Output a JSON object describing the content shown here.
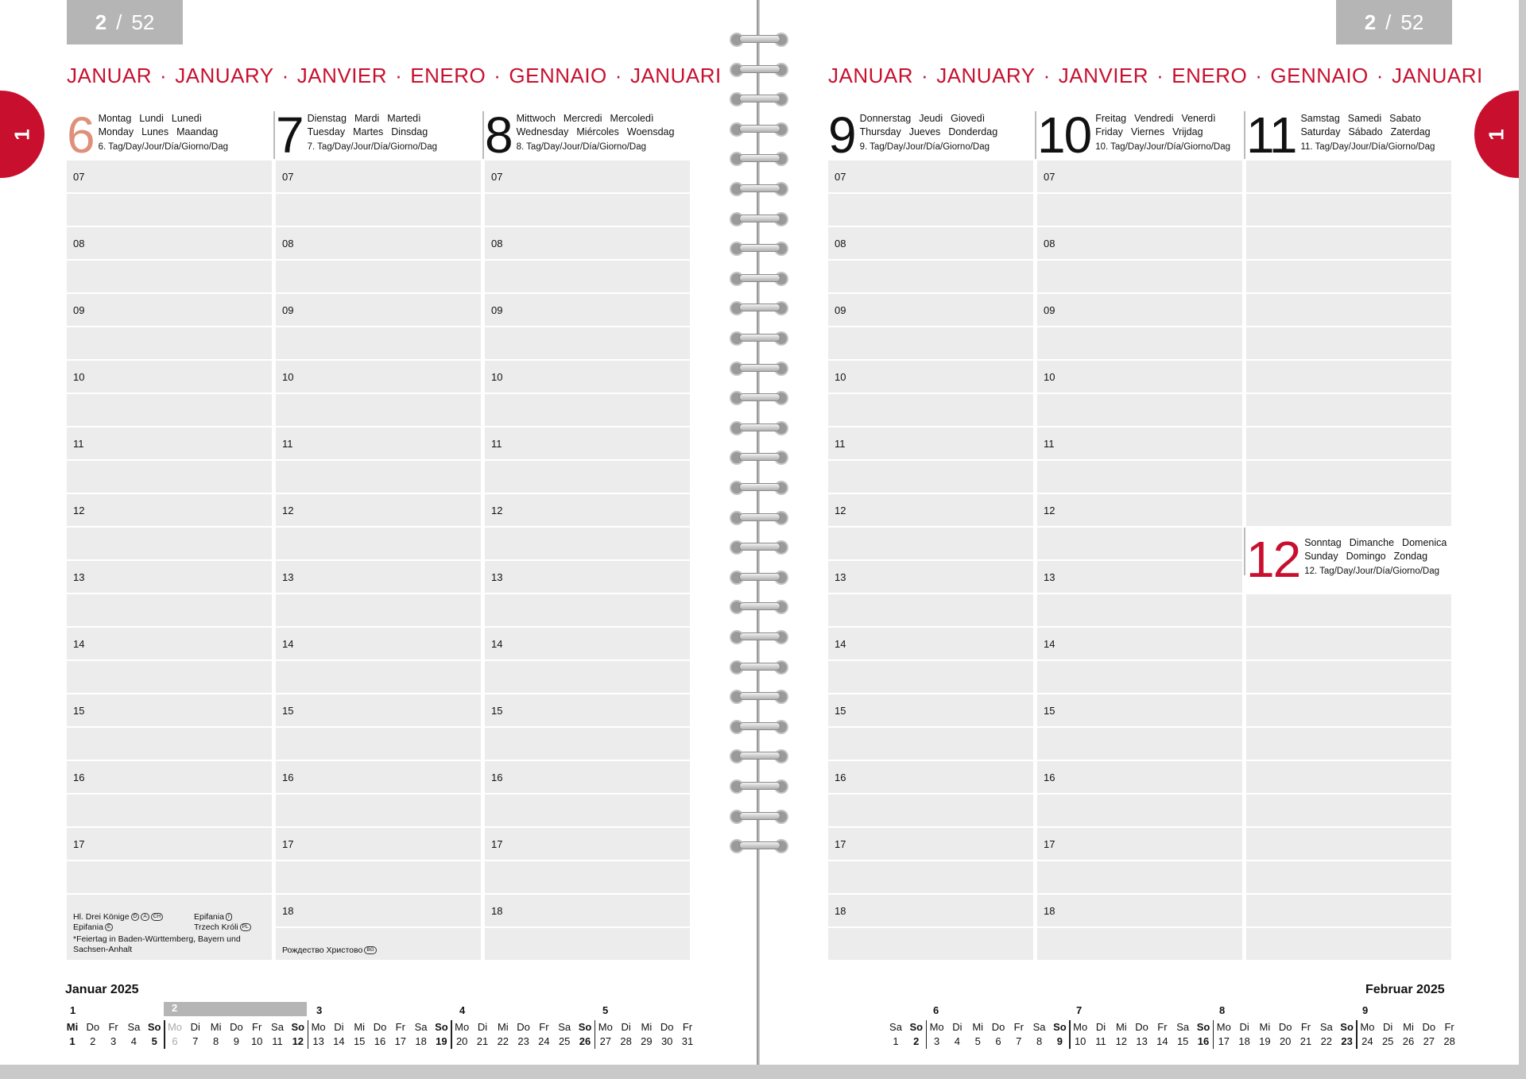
{
  "week": {
    "current": "2",
    "total": "52"
  },
  "months": [
    "JANUAR",
    "JANUARY",
    "JANVIER",
    "ENERO",
    "GENNAIO",
    "JANUARI"
  ],
  "tab_label": "1",
  "hours": [
    "07",
    "08",
    "09",
    "10",
    "11",
    "12",
    "13",
    "14",
    "15",
    "16",
    "17",
    "18"
  ],
  "days": [
    {
      "num": "6",
      "n1": [
        "Montag",
        "Lundi",
        "Lunedì"
      ],
      "n2": [
        "Monday",
        "Lunes",
        "Maandag"
      ],
      "n3": "6. Tag/Day/Jour/Día/Giorno/Dag",
      "color": "#e0907a"
    },
    {
      "num": "7",
      "n1": [
        "Dienstag",
        "Mardi",
        "Martedì"
      ],
      "n2": [
        "Tuesday",
        "Martes",
        "Dinsdag"
      ],
      "n3": "7. Tag/Day/Jour/Día/Giorno/Dag"
    },
    {
      "num": "8",
      "n1": [
        "Mittwoch",
        "Mercredi",
        "Mercoledì"
      ],
      "n2": [
        "Wednesday",
        "Miércoles",
        "Woensdag"
      ],
      "n3": "8. Tag/Day/Jour/Día/Giorno/Dag"
    },
    {
      "num": "9",
      "n1": [
        "Donnerstag",
        "Jeudi",
        "Giovedì"
      ],
      "n2": [
        "Thursday",
        "Jueves",
        "Donderdag"
      ],
      "n3": "9. Tag/Day/Jour/Día/Giorno/Dag"
    },
    {
      "num": "10",
      "n1": [
        "Freitag",
        "Vendredi",
        "Venerdì"
      ],
      "n2": [
        "Friday",
        "Viernes",
        "Vrijdag"
      ],
      "n3": "10. Tag/Day/Jour/Día/Giorno/Dag"
    },
    {
      "num": "11",
      "n1": [
        "Samstag",
        "Samedi",
        "Sabato"
      ],
      "n2": [
        "Saturday",
        "Sábado",
        "Zaterdag"
      ],
      "n3": "11. Tag/Day/Jour/Día/Giorno/Dag"
    },
    {
      "num": "12",
      "n1": [
        "Sonntag",
        "Dimanche",
        "Domenica"
      ],
      "n2": [
        "Sunday",
        "Domingo",
        "Zondag"
      ],
      "n3": "12. Tag/Day/Jour/Día/Giorno/Dag",
      "color": "#c8102e"
    }
  ],
  "holidays": {
    "mon_a": "Hl. Drei Könige",
    "mon_a_marks": [
      "D",
      "A",
      "CH"
    ],
    "mon_b": "Epifania",
    "mon_b_marks": [
      "E"
    ],
    "mon_c": "Epifania",
    "mon_c_marks": [
      "I"
    ],
    "mon_d": "Trzech Króli",
    "mon_d_marks": [
      "PL"
    ],
    "mon_foot": "*Feiertag in Baden-Württemberg, Bayern und Sachsen-Anhalt",
    "tue": "Рождество Христово",
    "tue_marks": [
      "BG"
    ]
  },
  "mini_calendar": {
    "left_title": "Januar 2025",
    "right_title": "Februar 2025",
    "left_weeks": [
      "1",
      "2",
      "3",
      "4",
      "5"
    ],
    "right_weeks": [
      "6",
      "7",
      "8",
      "9"
    ],
    "left_days": [
      [
        "Mi",
        "1"
      ],
      [
        "Do",
        "2"
      ],
      [
        "Fr",
        "3"
      ],
      [
        "Sa",
        "4"
      ],
      [
        "So",
        "5"
      ],
      [
        "Mo",
        "6"
      ],
      [
        "Di",
        "7"
      ],
      [
        "Mi",
        "8"
      ],
      [
        "Do",
        "9"
      ],
      [
        "Fr",
        "10"
      ],
      [
        "Sa",
        "11"
      ],
      [
        "So",
        "12"
      ],
      [
        "Mo",
        "13"
      ],
      [
        "Di",
        "14"
      ],
      [
        "Mi",
        "15"
      ],
      [
        "Do",
        "16"
      ],
      [
        "Fr",
        "17"
      ],
      [
        "Sa",
        "18"
      ],
      [
        "So",
        "19"
      ],
      [
        "Mo",
        "20"
      ],
      [
        "Di",
        "21"
      ],
      [
        "Mi",
        "22"
      ],
      [
        "Do",
        "23"
      ],
      [
        "Fr",
        "24"
      ],
      [
        "Sa",
        "25"
      ],
      [
        "So",
        "26"
      ],
      [
        "Mo",
        "27"
      ],
      [
        "Di",
        "28"
      ],
      [
        "Mi",
        "29"
      ],
      [
        "Do",
        "30"
      ],
      [
        "Fr",
        "31"
      ]
    ],
    "right_days": [
      [
        "Sa",
        "1"
      ],
      [
        "So",
        "2"
      ],
      [
        "Mo",
        "3"
      ],
      [
        "Di",
        "4"
      ],
      [
        "Mi",
        "5"
      ],
      [
        "Do",
        "6"
      ],
      [
        "Fr",
        "7"
      ],
      [
        "Sa",
        "8"
      ],
      [
        "So",
        "9"
      ],
      [
        "Mo",
        "10"
      ],
      [
        "Di",
        "11"
      ],
      [
        "Mi",
        "12"
      ],
      [
        "Do",
        "13"
      ],
      [
        "Fr",
        "14"
      ],
      [
        "Sa",
        "15"
      ],
      [
        "So",
        "16"
      ],
      [
        "Mo",
        "17"
      ],
      [
        "Di",
        "18"
      ],
      [
        "Mi",
        "19"
      ],
      [
        "Do",
        "20"
      ],
      [
        "Fr",
        "21"
      ],
      [
        "Sa",
        "22"
      ],
      [
        "So",
        "23"
      ],
      [
        "Mo",
        "24"
      ],
      [
        "Di",
        "25"
      ],
      [
        "Mi",
        "26"
      ],
      [
        "Do",
        "27"
      ],
      [
        "Fr",
        "28"
      ]
    ]
  }
}
